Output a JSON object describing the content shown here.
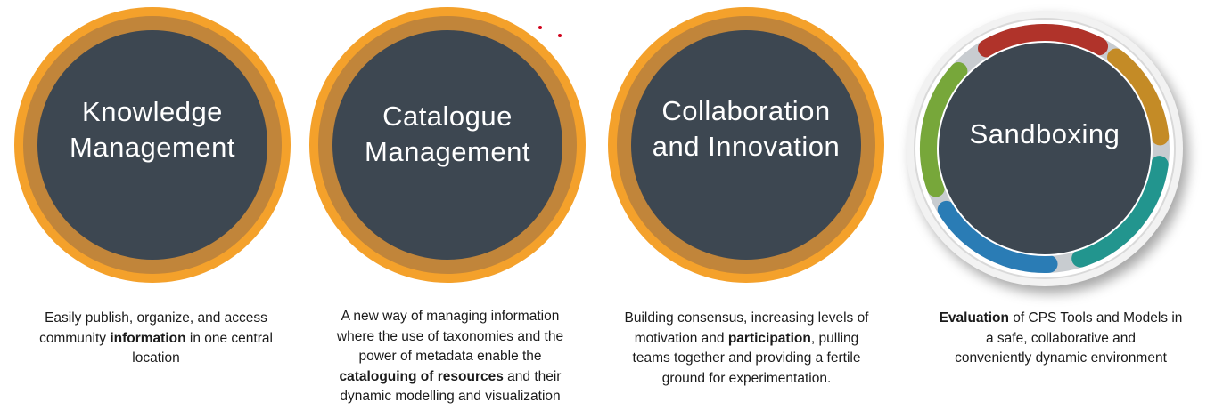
{
  "cards": [
    {
      "title_lines": [
        "Knowledge",
        "Management"
      ],
      "desc_lines": [
        [
          {
            "t": "Easily publish, organize, and access",
            "b": false
          }
        ],
        [
          {
            "t": "community ",
            "b": false
          },
          {
            "t": "information",
            "b": true
          },
          {
            "t": " in one central",
            "b": false
          }
        ],
        [
          {
            "t": "location",
            "b": false
          }
        ]
      ]
    },
    {
      "title_lines": [
        "Catalogue",
        "Management"
      ],
      "desc_lines": [
        [
          {
            "t": "A new way of managing information",
            "b": false
          }
        ],
        [
          {
            "t": "where the use of taxonomies and the",
            "b": false
          }
        ],
        [
          {
            "t": "power of metadata enable the",
            "b": false
          }
        ],
        [
          {
            "t": "cataloguing of resources",
            "b": true
          },
          {
            "t": " and their",
            "b": false
          }
        ],
        [
          {
            "t": "dynamic modelling and visualization",
            "b": false
          }
        ]
      ]
    },
    {
      "title_lines": [
        "Collaboration",
        "and Innovation"
      ],
      "desc_lines": [
        [
          {
            "t": "Building consensus, increasing levels of",
            "b": false
          }
        ],
        [
          {
            "t": "motivation and ",
            "b": false
          },
          {
            "t": "participation",
            "b": true
          },
          {
            "t": ", pulling",
            "b": false
          }
        ],
        [
          {
            "t": "teams together and providing a fertile",
            "b": false
          }
        ],
        [
          {
            "t": "ground for experimentation.",
            "b": false
          }
        ]
      ]
    },
    {
      "title_lines": [
        "Sandboxing"
      ],
      "desc_lines": [
        [
          {
            "t": "Evaluation",
            "b": true
          },
          {
            "t": " of CPS Tools and Models in",
            "b": false
          }
        ],
        [
          {
            "t": "a safe, collaborative and",
            "b": false
          }
        ],
        [
          {
            "t": "conveniently dynamic environment",
            "b": false
          }
        ]
      ]
    }
  ],
  "colors": {
    "ring_outer": "#f4a12b",
    "ring_inner": "#c1853a",
    "core": "#3d4751",
    "sandbox_segments": [
      "#b0332a",
      "#c48b26",
      "#22958e",
      "#2a7cb5",
      "#77a73a"
    ]
  }
}
